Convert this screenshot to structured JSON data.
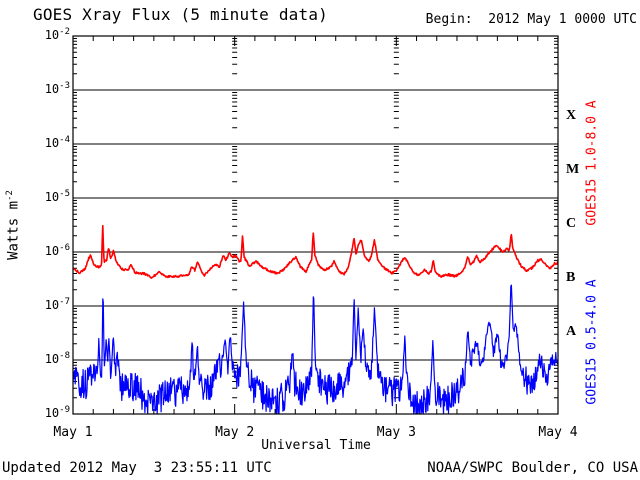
{
  "header": {
    "title": "GOES Xray Flux (5 minute data)",
    "begin_label": "Begin:  2012 May 1 0000 UTC"
  },
  "axes": {
    "y_title_base": "Watts m",
    "y_title_exponent": "-2",
    "y_tick_base": "10",
    "y_tick_exponents": [
      "-2",
      "-3",
      "-4",
      "-5",
      "-6",
      "-7",
      "-8",
      "-9"
    ],
    "x_title": "Universal Time",
    "x_tick_labels": [
      "May 1",
      "May 2",
      "May 3",
      "May 4"
    ],
    "flare_class_letters": [
      "X",
      "M",
      "C",
      "B",
      "A"
    ]
  },
  "legend": {
    "long_channel": {
      "label": "GOES15 1.0-8.0 A",
      "color": "#ff0000"
    },
    "short_channel": {
      "label": "GOES15 0.5-4.0 A",
      "color": "#0000ff"
    }
  },
  "footer": {
    "updated": "Updated 2012 May  3 23:55:11 UTC",
    "source": "NOAA/SWPC Boulder, CO USA"
  },
  "chart_data": {
    "type": "line",
    "title": "GOES Xray Flux (5 minute data)",
    "x_axis": {
      "label": "Universal Time",
      "start": "2012 May 1 0000 UTC",
      "range_hours": [
        0,
        72
      ],
      "tick_labels": [
        "May 1",
        "May 2",
        "May 3",
        "May 4"
      ],
      "minor_tick_hours": 3,
      "day_gridline_hours": [
        24,
        48
      ]
    },
    "y_axis": {
      "label": "Watts m^-2",
      "scale": "log10",
      "ylim": [
        1e-09,
        0.01
      ],
      "decade_exponents": [
        -2,
        -3,
        -4,
        -5,
        -6,
        -7,
        -8,
        -9
      ],
      "flare_class_bands": [
        {
          "letter": "X",
          "band_log10": [
            -4,
            -3
          ]
        },
        {
          "letter": "M",
          "band_log10": [
            -5,
            -4
          ]
        },
        {
          "letter": "C",
          "band_log10": [
            -6,
            -5
          ]
        },
        {
          "letter": "B",
          "band_log10": [
            -7,
            -6
          ]
        },
        {
          "letter": "A",
          "band_log10": [
            -8,
            -7
          ]
        }
      ]
    },
    "sample_interval_minutes": 5,
    "noise_seed": 20120503,
    "series": [
      {
        "name": "GOES15 1.0-8.0 A",
        "color": "#ff0000",
        "noise_amp_log10": 0.02,
        "anchors_time_log10flux": [
          [
            0,
            -6.31
          ],
          [
            1,
            -6.38
          ],
          [
            1.8,
            -6.32
          ],
          [
            2.3,
            -6.12
          ],
          [
            2.6,
            -6.07
          ],
          [
            3.2,
            -6.25
          ],
          [
            4,
            -6.28
          ],
          [
            4.25,
            -6.22
          ],
          [
            4.4,
            -5.46
          ],
          [
            4.6,
            -6.18
          ],
          [
            5,
            -6.15
          ],
          [
            5.3,
            -5.91
          ],
          [
            5.6,
            -6.14
          ],
          [
            6,
            -5.97
          ],
          [
            6.4,
            -6.18
          ],
          [
            7.3,
            -6.32
          ],
          [
            8.3,
            -6.33
          ],
          [
            8.6,
            -6.21
          ],
          [
            9.2,
            -6.38
          ],
          [
            10.5,
            -6.4
          ],
          [
            11.7,
            -6.47
          ],
          [
            12.8,
            -6.38
          ],
          [
            13.7,
            -6.45
          ],
          [
            15,
            -6.46
          ],
          [
            16.2,
            -6.44
          ],
          [
            17.2,
            -6.42
          ],
          [
            17.65,
            -6.26
          ],
          [
            18.1,
            -6.35
          ],
          [
            18.45,
            -6.18
          ],
          [
            18.8,
            -6.28
          ],
          [
            19.4,
            -6.44
          ],
          [
            20.3,
            -6.32
          ],
          [
            21.1,
            -6.22
          ],
          [
            21.7,
            -6.28
          ],
          [
            22.3,
            -6.07
          ],
          [
            22.7,
            -6.15
          ],
          [
            23.2,
            -6.02
          ],
          [
            23.6,
            -6.1
          ],
          [
            24.2,
            -6.06
          ],
          [
            24.7,
            -6.18
          ],
          [
            24.95,
            -6.18
          ],
          [
            25.15,
            -5.68
          ],
          [
            25.4,
            -6.1
          ],
          [
            26.2,
            -6.26
          ],
          [
            27.2,
            -6.17
          ],
          [
            28.1,
            -6.28
          ],
          [
            29.3,
            -6.36
          ],
          [
            30.5,
            -6.4
          ],
          [
            31.4,
            -6.31
          ],
          [
            32.4,
            -6.17
          ],
          [
            33.1,
            -6.09
          ],
          [
            33.8,
            -6.28
          ],
          [
            34.6,
            -6.36
          ],
          [
            35.2,
            -6.2
          ],
          [
            35.45,
            -6.15
          ],
          [
            35.65,
            -5.61
          ],
          [
            35.9,
            -6.05
          ],
          [
            36.4,
            -6.24
          ],
          [
            37.3,
            -6.34
          ],
          [
            38.3,
            -6.27
          ],
          [
            38.8,
            -6.17
          ],
          [
            39.4,
            -6.34
          ],
          [
            40.2,
            -6.42
          ],
          [
            40.9,
            -6.28
          ],
          [
            41.4,
            -5.98
          ],
          [
            41.72,
            -5.73
          ],
          [
            42,
            -6.05
          ],
          [
            42.35,
            -5.86
          ],
          [
            42.8,
            -5.77
          ],
          [
            43.3,
            -6.08
          ],
          [
            43.9,
            -6.18
          ],
          [
            44.3,
            -6.06
          ],
          [
            44.75,
            -5.78
          ],
          [
            45.2,
            -6.12
          ],
          [
            45.8,
            -6.26
          ],
          [
            46.6,
            -6.33
          ],
          [
            47.4,
            -6.39
          ],
          [
            48,
            -6.34
          ],
          [
            48.6,
            -6.22
          ],
          [
            49.2,
            -6.1
          ],
          [
            49.9,
            -6.24
          ],
          [
            50.6,
            -6.38
          ],
          [
            51.3,
            -6.43
          ],
          [
            52.2,
            -6.33
          ],
          [
            52.8,
            -6.39
          ],
          [
            53.2,
            -6.36
          ],
          [
            53.45,
            -6.14
          ],
          [
            53.8,
            -6.38
          ],
          [
            54.6,
            -6.45
          ],
          [
            55.7,
            -6.42
          ],
          [
            56.8,
            -6.45
          ],
          [
            57.8,
            -6.36
          ],
          [
            58.3,
            -6.25
          ],
          [
            58.6,
            -6.08
          ],
          [
            59,
            -6.22
          ],
          [
            59.5,
            -6.18
          ],
          [
            59.9,
            -6.07
          ],
          [
            60.4,
            -6.19
          ],
          [
            61.2,
            -6.11
          ],
          [
            61.9,
            -5.99
          ],
          [
            62.7,
            -5.89
          ],
          [
            63.3,
            -5.93
          ],
          [
            63.8,
            -6.01
          ],
          [
            64.4,
            -5.94
          ],
          [
            64.8,
            -5.97
          ],
          [
            65.05,
            -5.66
          ],
          [
            65.3,
            -5.95
          ],
          [
            65.9,
            -6.12
          ],
          [
            66.6,
            -6.27
          ],
          [
            67.4,
            -6.35
          ],
          [
            68.2,
            -6.29
          ],
          [
            69,
            -6.16
          ],
          [
            69.6,
            -6.14
          ],
          [
            70.2,
            -6.25
          ],
          [
            70.8,
            -6.31
          ],
          [
            71.4,
            -6.22
          ],
          [
            72,
            -6.2
          ]
        ]
      },
      {
        "name": "GOES15 0.5-4.0 A",
        "color": "#0000ff",
        "anchors_time_log10flux_noiseamp": [
          [
            0,
            -8.35,
            0.25
          ],
          [
            1.2,
            -8.5,
            0.3
          ],
          [
            2.5,
            -8.35,
            0.3
          ],
          [
            3.6,
            -8.2,
            0.18
          ],
          [
            3.85,
            -7.6,
            0.1
          ],
          [
            4.1,
            -8.25,
            0.15
          ],
          [
            4.3,
            -8.2,
            0.1
          ],
          [
            4.45,
            -6.47,
            0.03
          ],
          [
            4.62,
            -8.1,
            0.1
          ],
          [
            4.9,
            -7.65,
            0.1
          ],
          [
            5.15,
            -8.1,
            0.12
          ],
          [
            5.35,
            -7.5,
            0.1
          ],
          [
            5.6,
            -8.25,
            0.18
          ],
          [
            6,
            -7.6,
            0.1
          ],
          [
            6.3,
            -8.3,
            0.22
          ],
          [
            6.55,
            -7.75,
            0.1
          ],
          [
            6.85,
            -8.3,
            0.22
          ],
          [
            7.2,
            -8.5,
            0.3
          ],
          [
            8.5,
            -8.45,
            0.3
          ],
          [
            9.8,
            -8.6,
            0.3
          ],
          [
            11,
            -8.75,
            0.28
          ],
          [
            12.2,
            -8.8,
            0.26
          ],
          [
            13.5,
            -8.65,
            0.3
          ],
          [
            14.8,
            -8.55,
            0.3
          ],
          [
            16,
            -8.6,
            0.3
          ],
          [
            17.1,
            -8.5,
            0.26
          ],
          [
            17.45,
            -8.3,
            0.18
          ],
          [
            17.65,
            -7.55,
            0.08
          ],
          [
            17.9,
            -8.3,
            0.18
          ],
          [
            18.2,
            -8.2,
            0.15
          ],
          [
            18.45,
            -7.7,
            0.1
          ],
          [
            18.75,
            -8.35,
            0.2
          ],
          [
            19.6,
            -8.55,
            0.28
          ],
          [
            20.6,
            -8.45,
            0.26
          ],
          [
            21.3,
            -8.25,
            0.22
          ],
          [
            21.65,
            -7.85,
            0.12
          ],
          [
            22,
            -8.25,
            0.2
          ],
          [
            22.6,
            -7.62,
            0.1
          ],
          [
            22.95,
            -8.2,
            0.18
          ],
          [
            23.35,
            -7.52,
            0.1
          ],
          [
            23.7,
            -8.15,
            0.18
          ],
          [
            24.3,
            -8.3,
            0.22
          ],
          [
            24.9,
            -8.25,
            0.2
          ],
          [
            25.35,
            -6.92,
            0.04
          ],
          [
            25.7,
            -8,
            0.15
          ],
          [
            26.4,
            -8.45,
            0.28
          ],
          [
            27.5,
            -8.6,
            0.3
          ],
          [
            28.8,
            -8.75,
            0.28
          ],
          [
            30,
            -8.8,
            0.26
          ],
          [
            31.2,
            -8.7,
            0.3
          ],
          [
            32.2,
            -8.5,
            0.26
          ],
          [
            32.55,
            -7.8,
            0.12
          ],
          [
            32.9,
            -8.45,
            0.25
          ],
          [
            34,
            -8.6,
            0.28
          ],
          [
            35,
            -8.5,
            0.25
          ],
          [
            35.45,
            -8.2,
            0.15
          ],
          [
            35.7,
            -6.66,
            0.04
          ],
          [
            36,
            -8.1,
            0.15
          ],
          [
            36.6,
            -8.4,
            0.26
          ],
          [
            37.8,
            -8.55,
            0.3
          ],
          [
            39,
            -8.5,
            0.3
          ],
          [
            40.2,
            -8.4,
            0.28
          ],
          [
            41.1,
            -8.2,
            0.2
          ],
          [
            41.5,
            -7.95,
            0.12
          ],
          [
            41.72,
            -6.8,
            0.04
          ],
          [
            42,
            -7.95,
            0.12
          ],
          [
            42.35,
            -7.05,
            0.06
          ],
          [
            42.7,
            -8,
            0.13
          ],
          [
            43.1,
            -7.38,
            0.08
          ],
          [
            43.5,
            -8.15,
            0.18
          ],
          [
            44.3,
            -8.2,
            0.18
          ],
          [
            44.75,
            -7.06,
            0.06
          ],
          [
            45.2,
            -8.15,
            0.18
          ],
          [
            46,
            -8.45,
            0.28
          ],
          [
            47,
            -8.55,
            0.3
          ],
          [
            48,
            -8.6,
            0.28
          ],
          [
            48.9,
            -8.45,
            0.25
          ],
          [
            49.25,
            -7.6,
            0.1
          ],
          [
            49.6,
            -8.4,
            0.25
          ],
          [
            50.5,
            -8.8,
            0.26
          ],
          [
            51.5,
            -8.85,
            0.24
          ],
          [
            52.3,
            -8.75,
            0.28
          ],
          [
            53.1,
            -8.6,
            0.28
          ],
          [
            53.45,
            -7.62,
            0.1
          ],
          [
            53.8,
            -8.55,
            0.28
          ],
          [
            54.8,
            -8.8,
            0.26
          ],
          [
            55.8,
            -8.75,
            0.28
          ],
          [
            56.8,
            -8.6,
            0.3
          ],
          [
            57.7,
            -8.45,
            0.28
          ],
          [
            58.3,
            -8.2,
            0.18
          ],
          [
            58.6,
            -7.4,
            0.09
          ],
          [
            58.95,
            -8.05,
            0.15
          ],
          [
            59.4,
            -7.9,
            0.13
          ],
          [
            59.9,
            -7.65,
            0.1
          ],
          [
            60.4,
            -8.05,
            0.15
          ],
          [
            61,
            -7.9,
            0.13
          ],
          [
            61.45,
            -7.5,
            0.1
          ],
          [
            61.95,
            -7.28,
            0.08
          ],
          [
            62.4,
            -7.9,
            0.12
          ],
          [
            63,
            -7.5,
            0.1
          ],
          [
            63.6,
            -8.1,
            0.15
          ],
          [
            64.3,
            -8,
            0.15
          ],
          [
            64.75,
            -7.6,
            0.1
          ],
          [
            65.05,
            -6.47,
            0.03
          ],
          [
            65.35,
            -7.55,
            0.1
          ],
          [
            65.8,
            -7.33,
            0.08
          ],
          [
            66.3,
            -8,
            0.15
          ],
          [
            67,
            -8.3,
            0.22
          ],
          [
            67.8,
            -8.5,
            0.26
          ],
          [
            68.6,
            -8.35,
            0.22
          ],
          [
            69.3,
            -7.95,
            0.14
          ],
          [
            69.9,
            -8.25,
            0.2
          ],
          [
            70.5,
            -8.3,
            0.2
          ],
          [
            71.1,
            -8.05,
            0.15
          ],
          [
            71.6,
            -7.95,
            0.13
          ],
          [
            72,
            -8.05,
            0.12
          ]
        ]
      }
    ]
  }
}
